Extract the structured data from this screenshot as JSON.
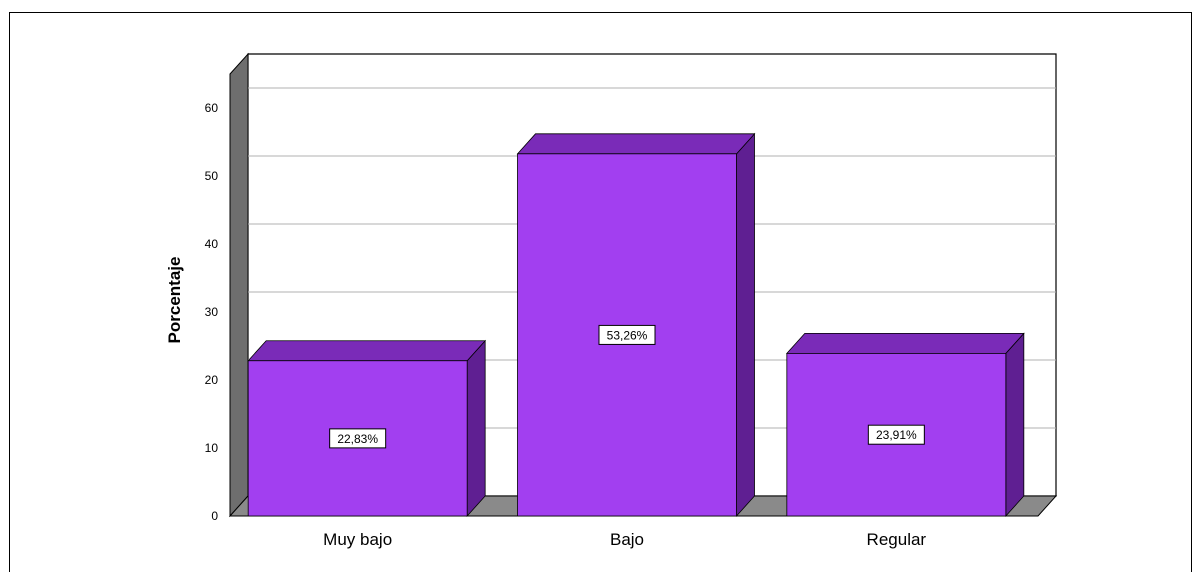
{
  "chart_data": {
    "type": "bar",
    "style": "3d",
    "categories": [
      "Muy bajo",
      "Bajo",
      "Regular"
    ],
    "values": [
      22.83,
      53.26,
      23.91
    ],
    "data_labels": [
      "22,83%",
      "53,26%",
      "23,91%"
    ],
    "ylabel": "Porcentaje",
    "xlabel": "",
    "yticks": [
      "0",
      "10",
      "20",
      "30",
      "40",
      "50",
      "60"
    ],
    "ylim": [
      0,
      65
    ],
    "grid": true,
    "legend": "none",
    "colors": {
      "bar_front": "#a23ff0",
      "bar_top": "#7a2bb8",
      "bar_side": "#5f1f92",
      "floor": "#8a8a8a",
      "wall": "#6e6e6e"
    }
  }
}
